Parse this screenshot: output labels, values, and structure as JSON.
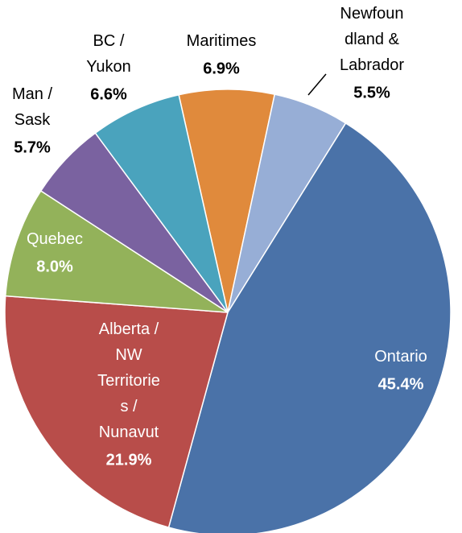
{
  "chart_data": {
    "type": "pie",
    "categories": [
      "Maritimes",
      "Newfoundland & Labrador",
      "Ontario",
      "Alberta / NW Territories / Nunavut",
      "Quebec",
      "Man / Sask",
      "BC / Yukon"
    ],
    "values": [
      6.9,
      5.5,
      45.4,
      21.9,
      8.0,
      5.7,
      6.6
    ],
    "value_labels": [
      "6.9%",
      "5.5%",
      "45.4%",
      "21.9%",
      "8.0%",
      "5.7%",
      "6.6%"
    ],
    "colors": [
      "#e08a3c",
      "#97aed6",
      "#4a72a8",
      "#b84d4a",
      "#93b25a",
      "#7a62a0",
      "#4aa3bd"
    ]
  }
}
